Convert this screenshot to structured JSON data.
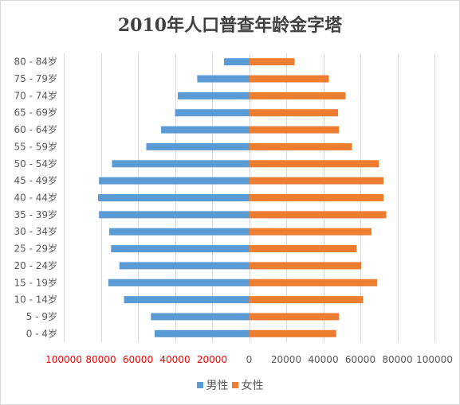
{
  "chart_data": {
    "type": "bar",
    "orientation": "horizontal",
    "title": "2010年人口普查年龄金字塔",
    "categories": [
      "0 - 4岁",
      "5 - 9岁",
      "10 - 14岁",
      "15 - 19岁",
      "20 - 24岁",
      "25 - 29岁",
      "30 - 34岁",
      "35 - 39岁",
      "40 - 44岁",
      "45 - 49岁",
      "50 - 54岁",
      "55 - 59岁",
      "60 - 64岁",
      "65 - 69岁",
      "70 - 74岁",
      "75 - 79岁",
      "80 - 84岁"
    ],
    "series": [
      {
        "name": "男性",
        "color": "#5b9bd5",
        "values": [
          -51000,
          -53000,
          -67500,
          -76000,
          -70000,
          -74500,
          -75500,
          -81000,
          -81500,
          -81000,
          -74000,
          -55500,
          -47500,
          -40000,
          -38500,
          -28000,
          -13500
        ]
      },
      {
        "name": "女性",
        "color": "#ed7d31",
        "values": [
          47000,
          48500,
          61500,
          69000,
          60500,
          58000,
          66000,
          74000,
          72500,
          72500,
          70000,
          55500,
          48500,
          48000,
          52000,
          43000,
          24500
        ]
      }
    ],
    "xlim": [
      -100000,
      100000
    ],
    "x_ticks": [
      -100000,
      -80000,
      -60000,
      -40000,
      -20000,
      0,
      20000,
      40000,
      60000,
      80000,
      100000
    ],
    "x_tick_labels": [
      "100000",
      "80000",
      "60000",
      "40000",
      "20000",
      "0",
      "20000",
      "40000",
      "60000",
      "80000",
      "100000"
    ],
    "negative_tick_color": "#ff0000",
    "positive_tick_color": "#595959",
    "gridlines": "vertical",
    "legend_position": "bottom"
  }
}
